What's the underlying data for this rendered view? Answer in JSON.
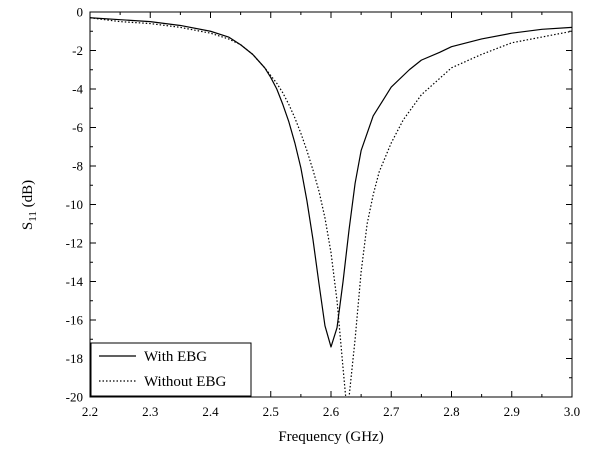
{
  "chart_data": {
    "type": "line",
    "title": "",
    "xlabel": "Frequency (GHz)",
    "ylabel_main": "S",
    "ylabel_sub": "11",
    "ylabel_unit": " (dB)",
    "xlim": [
      2.2,
      3.0
    ],
    "ylim": [
      -20,
      0
    ],
    "xticks": [
      2.2,
      2.3,
      2.4,
      2.5,
      2.6,
      2.7,
      2.8,
      2.9,
      3.0
    ],
    "xtick_labels": [
      "2.2",
      "2.3",
      "2.4",
      "2.5",
      "2.6",
      "2.7",
      "2.8",
      "2.9",
      "3.0"
    ],
    "yticks": [
      0,
      -2,
      -4,
      -6,
      -8,
      -10,
      -12,
      -14,
      -16,
      -18,
      -20
    ],
    "ytick_labels": [
      "0",
      "-2",
      "-4",
      "-6",
      "-8",
      "-10",
      "-12",
      "-14",
      "-16",
      "-18",
      "-20"
    ],
    "grid": false,
    "legend_position": "bottom-left",
    "series": [
      {
        "name": "With EBG",
        "style": "solid",
        "color": "#000000",
        "x": [
          2.2,
          2.25,
          2.3,
          2.35,
          2.4,
          2.43,
          2.45,
          2.47,
          2.49,
          2.5,
          2.51,
          2.52,
          2.53,
          2.54,
          2.55,
          2.56,
          2.57,
          2.58,
          2.59,
          2.6,
          2.61,
          2.62,
          2.63,
          2.64,
          2.65,
          2.67,
          2.7,
          2.73,
          2.75,
          2.78,
          2.8,
          2.85,
          2.9,
          2.95,
          3.0
        ],
        "y": [
          -0.3,
          -0.4,
          -0.5,
          -0.7,
          -1.0,
          -1.3,
          -1.7,
          -2.2,
          -2.9,
          -3.4,
          -4.0,
          -4.8,
          -5.7,
          -6.8,
          -8.1,
          -9.8,
          -11.8,
          -14.1,
          -16.3,
          -17.4,
          -16.4,
          -14.0,
          -11.3,
          -8.9,
          -7.2,
          -5.4,
          -3.9,
          -3.0,
          -2.5,
          -2.1,
          -1.8,
          -1.4,
          -1.1,
          -0.9,
          -0.8
        ]
      },
      {
        "name": "Without EBG",
        "style": "dotted",
        "color": "#000000",
        "x": [
          2.2,
          2.25,
          2.3,
          2.35,
          2.4,
          2.43,
          2.45,
          2.47,
          2.49,
          2.5,
          2.51,
          2.52,
          2.53,
          2.54,
          2.55,
          2.56,
          2.57,
          2.58,
          2.59,
          2.6,
          2.61,
          2.62,
          2.625,
          2.63,
          2.64,
          2.65,
          2.66,
          2.67,
          2.68,
          2.7,
          2.72,
          2.75,
          2.8,
          2.85,
          2.9,
          2.95,
          3.0
        ],
        "y": [
          -0.3,
          -0.5,
          -0.6,
          -0.8,
          -1.1,
          -1.4,
          -1.7,
          -2.2,
          -2.9,
          -3.3,
          -3.7,
          -4.2,
          -4.8,
          -5.5,
          -6.3,
          -7.2,
          -8.2,
          -9.3,
          -10.7,
          -12.5,
          -15.0,
          -18.5,
          -20.2,
          -20.0,
          -17.0,
          -13.5,
          -11.0,
          -9.5,
          -8.3,
          -6.8,
          -5.6,
          -4.3,
          -2.9,
          -2.2,
          -1.6,
          -1.3,
          -1.0
        ]
      }
    ]
  }
}
